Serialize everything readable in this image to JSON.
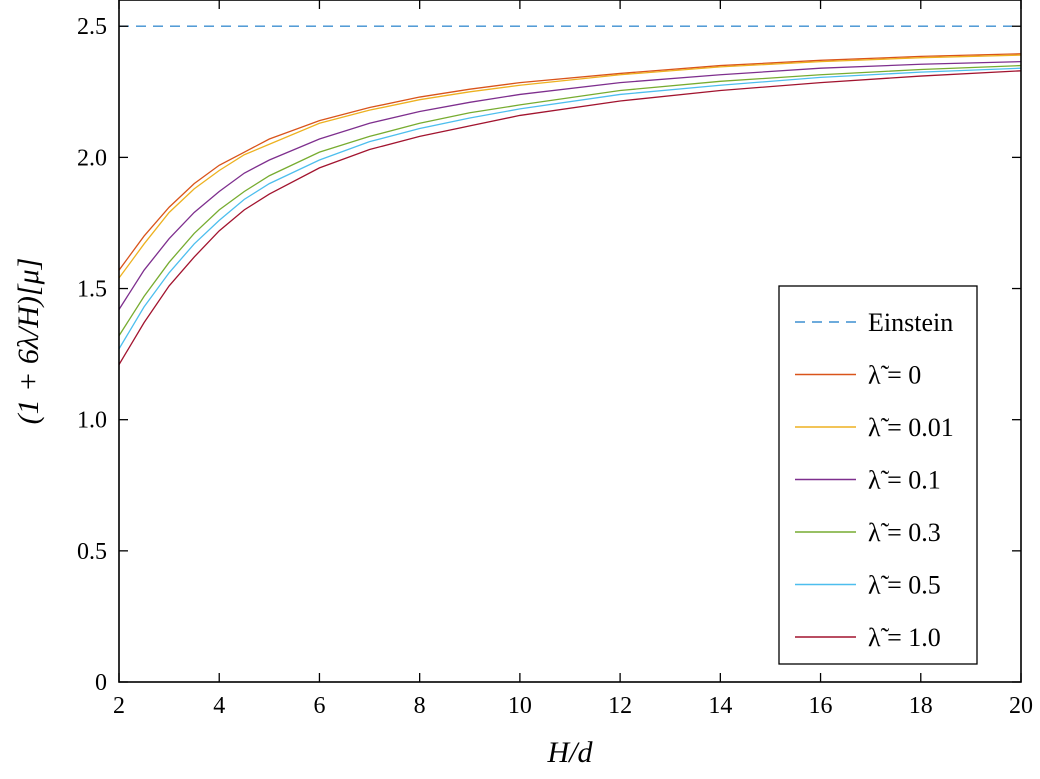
{
  "chart_data": {
    "type": "line",
    "xlabel": "H/d",
    "ylabel": "(1 + 6λ/H)[μ]",
    "xlim": [
      2,
      20
    ],
    "ylim": [
      0,
      2.6
    ],
    "xticks": [
      2,
      4,
      6,
      8,
      10,
      12,
      14,
      16,
      18,
      20
    ],
    "yticks": [
      0,
      0.5,
      1.0,
      1.5,
      2.0,
      2.5
    ],
    "xtick_labels": [
      "2",
      "4",
      "6",
      "8",
      "10",
      "12",
      "14",
      "16",
      "18",
      "20"
    ],
    "ytick_labels": [
      "0",
      "0.5",
      "1.0",
      "1.5",
      "2.0",
      "2.5"
    ],
    "grid": false,
    "legend_position": "right",
    "reference_line": {
      "name": "Einstein",
      "y": 2.5,
      "style": "dashed",
      "color": "#3d8fd1"
    },
    "x": [
      2,
      2.5,
      3,
      3.5,
      4,
      4.5,
      5,
      6,
      7,
      8,
      9,
      10,
      12,
      14,
      16,
      18,
      20
    ],
    "series": [
      {
        "name": "λ̃ = 0",
        "color": "#d9541a",
        "values": [
          1.57,
          1.7,
          1.81,
          1.9,
          1.97,
          2.02,
          2.07,
          2.14,
          2.19,
          2.23,
          2.26,
          2.285,
          2.32,
          2.35,
          2.37,
          2.385,
          2.395
        ]
      },
      {
        "name": "λ̃ = 0.01",
        "color": "#edb120",
        "values": [
          1.54,
          1.67,
          1.79,
          1.88,
          1.95,
          2.01,
          2.05,
          2.13,
          2.18,
          2.22,
          2.25,
          2.275,
          2.315,
          2.345,
          2.365,
          2.38,
          2.39
        ]
      },
      {
        "name": "λ̃ = 0.1",
        "color": "#7e2f8e",
        "values": [
          1.42,
          1.57,
          1.69,
          1.79,
          1.87,
          1.94,
          1.99,
          2.07,
          2.13,
          2.175,
          2.21,
          2.24,
          2.285,
          2.315,
          2.34,
          2.355,
          2.365
        ]
      },
      {
        "name": "λ̃ = 0.3",
        "color": "#77ac30",
        "values": [
          1.32,
          1.47,
          1.6,
          1.71,
          1.8,
          1.87,
          1.93,
          2.02,
          2.08,
          2.13,
          2.17,
          2.2,
          2.255,
          2.29,
          2.315,
          2.335,
          2.35
        ]
      },
      {
        "name": "λ̃ = 0.5",
        "color": "#4dbeee",
        "values": [
          1.27,
          1.43,
          1.56,
          1.67,
          1.76,
          1.84,
          1.9,
          1.99,
          2.06,
          2.11,
          2.15,
          2.185,
          2.24,
          2.275,
          2.305,
          2.325,
          2.34
        ]
      },
      {
        "name": "λ̃ = 1.0",
        "color": "#a2142f",
        "values": [
          1.21,
          1.37,
          1.51,
          1.62,
          1.72,
          1.8,
          1.86,
          1.96,
          2.03,
          2.08,
          2.12,
          2.16,
          2.215,
          2.255,
          2.285,
          2.31,
          2.33
        ]
      }
    ]
  }
}
